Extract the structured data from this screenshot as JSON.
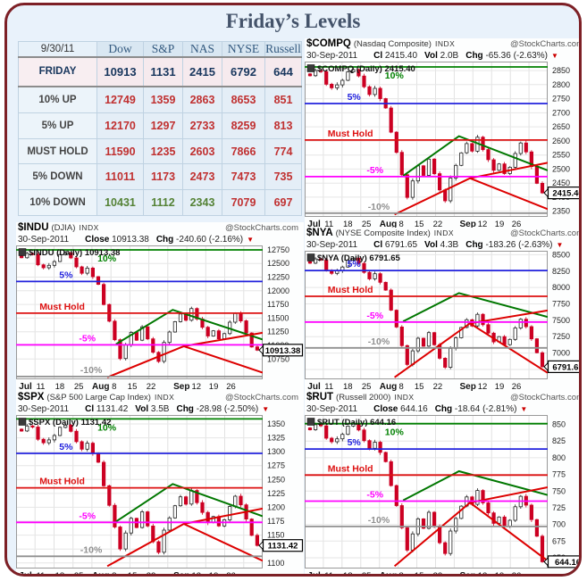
{
  "page": {
    "title": "Friday’s Levels",
    "border_color": "#7d2026",
    "background": "#e9f2fb"
  },
  "table": {
    "date_header": "9/30/11",
    "columns": [
      "Dow",
      "S&P",
      "NAS",
      "NYSE",
      "Russell"
    ],
    "rows": [
      {
        "label": "FRIDAY",
        "row_type": "friday",
        "values": [
          "10913",
          "1131",
          "2415",
          "6792",
          "644"
        ],
        "value_colors": [
          "navy",
          "navy",
          "navy",
          "navy",
          "navy"
        ]
      },
      {
        "label": "10% UP",
        "row_type": "normal",
        "values": [
          "12749",
          "1359",
          "2863",
          "8653",
          "851"
        ],
        "value_colors": [
          "red",
          "red",
          "red",
          "red",
          "red"
        ]
      },
      {
        "label": "5% UP",
        "row_type": "normal",
        "values": [
          "12170",
          "1297",
          "2733",
          "8259",
          "813"
        ],
        "value_colors": [
          "red",
          "red",
          "red",
          "red",
          "red"
        ]
      },
      {
        "label": "MUST HOLD",
        "row_type": "normal",
        "values": [
          "11590",
          "1235",
          "2603",
          "7866",
          "774"
        ],
        "value_colors": [
          "red",
          "red",
          "red",
          "red",
          "red"
        ]
      },
      {
        "label": "5% DOWN",
        "row_type": "normal",
        "values": [
          "11011",
          "1173",
          "2473",
          "7473",
          "735"
        ],
        "value_colors": [
          "red",
          "red",
          "red",
          "red",
          "red"
        ]
      },
      {
        "label": "10% DOWN",
        "row_type": "normal",
        "values": [
          "10431",
          "1112",
          "2343",
          "7079",
          "697"
        ],
        "value_colors": [
          "green",
          "green",
          "green",
          "red",
          "red"
        ]
      }
    ]
  },
  "x_axis": [
    {
      "t": "Jul",
      "b": true
    },
    {
      "t": "11"
    },
    {
      "t": "18"
    },
    {
      "t": "25"
    },
    {
      "t": "Aug",
      "b": true
    },
    {
      "t": "8"
    },
    {
      "t": "15"
    },
    {
      "t": "22"
    },
    {
      "t": "Sep",
      "b": true
    },
    {
      "t": "12"
    },
    {
      "t": "19"
    },
    {
      "t": "26"
    }
  ],
  "price_shape": [
    0.93,
    0.97,
    0.95,
    0.88,
    0.84,
    0.87,
    0.9,
    0.95,
    0.98,
    0.92,
    0.86,
    0.8,
    0.84,
    0.78,
    0.7,
    0.55,
    0.4,
    0.25,
    0.1,
    0.2,
    0.32,
    0.24,
    0.36,
    0.26,
    0.14,
    0.08,
    0.22,
    0.32,
    0.4,
    0.46,
    0.42,
    0.5,
    0.43,
    0.35,
    0.28,
    0.33,
    0.25,
    0.31,
    0.39,
    0.47,
    0.41,
    0.3,
    0.2,
    0.14
  ],
  "chart_data": [
    {
      "type": "candlestick",
      "symbol": "$COMPQ",
      "name": "(Nasdaq Composite)",
      "exch": "INDX",
      "source": "@StockCharts.com",
      "date": "30-Sep-2011",
      "quote": [
        {
          "k": "Cl",
          "v": "2415.40"
        },
        {
          "k": "Vol",
          "v": "2.0B"
        },
        {
          "k": "Chg",
          "v": "-65.36 (-2.63%)"
        }
      ],
      "plot_label": "$COMPQ (Daily) 2415.40",
      "close": 2415.4,
      "close_label": "2415.40",
      "y_min": 2330,
      "y_max": 2882,
      "ticks": [
        2850,
        2800,
        2750,
        2700,
        2650,
        2600,
        2550,
        2500,
        2450,
        2400,
        2350
      ],
      "levels": [
        {
          "label": "10%",
          "value": 2863,
          "color": "#008000"
        },
        {
          "label": "5%",
          "value": 2733,
          "color": "#2222dd"
        },
        {
          "label": "Must Hold",
          "value": 2603,
          "color": "#dd1111"
        },
        {
          "label": "-5%",
          "value": 2473,
          "color": "#ff00ff"
        },
        {
          "label": "-10%",
          "value": 2343,
          "color": "#909090"
        }
      ],
      "path_low": 2350,
      "path_high": 2868
    },
    {
      "type": "candlestick",
      "symbol": "$INDU",
      "name": "(DJIA)",
      "exch": "INDX",
      "source": "@StockCharts.com",
      "date": "30-Sep-2011",
      "quote": [
        {
          "k": "Close",
          "v": "10913.38"
        },
        {
          "k": "Chg",
          "v": "-240.60 (-2.16%)"
        }
      ],
      "plot_label": "$INDU (Daily) 10913.38",
      "close": 10913.38,
      "close_label": "10913.38",
      "y_min": 10380,
      "y_max": 12830,
      "ticks": [
        12750,
        12500,
        12250,
        12000,
        11750,
        11500,
        11250,
        11000,
        10750
      ],
      "levels": [
        {
          "label": "10%",
          "value": 12749,
          "color": "#008000"
        },
        {
          "label": "5%",
          "value": 12170,
          "color": "#2222dd"
        },
        {
          "label": "Must Hold",
          "value": 11590,
          "color": "#dd1111"
        },
        {
          "label": "-5%",
          "value": 11011,
          "color": "#ff00ff"
        },
        {
          "label": "-10%",
          "value": 10431,
          "color": "#909090"
        }
      ],
      "path_low": 10550,
      "path_high": 12760
    },
    {
      "type": "candlestick",
      "symbol": "$NYA",
      "name": "(NYSE Composite Index)",
      "exch": "INDX",
      "source": "@StockCharts.com",
      "date": "30-Sep-2011",
      "quote": [
        {
          "k": "Cl",
          "v": "6791.65"
        },
        {
          "k": "Vol",
          "v": "4.3B"
        },
        {
          "k": "Chg",
          "v": "-183.26 (-2.63%)"
        }
      ],
      "plot_label": "$NYA (Daily) 6791.65",
      "close": 6791.65,
      "close_label": "6791.65",
      "y_min": 6600,
      "y_max": 8560,
      "ticks": [
        8500,
        8250,
        8000,
        7750,
        7500,
        7250,
        7000,
        6750
      ],
      "levels": [
        {
          "label": "10%",
          "value": 8653,
          "color": "#008000"
        },
        {
          "label": "5%",
          "value": 8259,
          "color": "#2222dd"
        },
        {
          "label": "Must Hold",
          "value": 7866,
          "color": "#dd1111"
        },
        {
          "label": "-5%",
          "value": 7473,
          "color": "#ff00ff"
        },
        {
          "label": "-10%",
          "value": 7079,
          "color": "#909090"
        }
      ],
      "path_low": 6650,
      "path_high": 8500
    },
    {
      "type": "candlestick",
      "symbol": "$SPX",
      "name": "(S&P 500 Large Cap Index)",
      "exch": "INDX",
      "source": "@StockCharts.com",
      "date": "30-Sep-2011",
      "quote": [
        {
          "k": "Cl",
          "v": "1131.42"
        },
        {
          "k": "Vol",
          "v": "3.5B"
        },
        {
          "k": "Chg",
          "v": "-28.98 (-2.50%)"
        }
      ],
      "plot_label": "$SPX (Daily) 1131.42",
      "close": 1131.42,
      "close_label": "1131.42",
      "y_min": 1090,
      "y_max": 1366,
      "ticks": [
        1350,
        1325,
        1300,
        1275,
        1250,
        1225,
        1200,
        1175,
        1150,
        1125,
        1100
      ],
      "levels": [
        {
          "label": "10%",
          "value": 1359,
          "color": "#008000"
        },
        {
          "label": "5%",
          "value": 1297,
          "color": "#2222dd"
        },
        {
          "label": "Must Hold",
          "value": 1235,
          "color": "#dd1111"
        },
        {
          "label": "-5%",
          "value": 1173,
          "color": "#ff00ff"
        },
        {
          "label": "-10%",
          "value": 1112,
          "color": "#909090"
        }
      ],
      "path_low": 1101,
      "path_high": 1355
    },
    {
      "type": "candlestick",
      "symbol": "$RUT",
      "name": "(Russell 2000)",
      "exch": "INDX",
      "source": "@StockCharts.com",
      "date": "30-Sep-2011",
      "quote": [
        {
          "k": "Close",
          "v": "644.16"
        },
        {
          "k": "Chg",
          "v": "-18.64 (-2.81%)"
        }
      ],
      "plot_label": "$RUT (Daily) 644.16",
      "close": 644.16,
      "close_label": "644.16",
      "y_min": 634,
      "y_max": 864,
      "ticks": [
        850,
        825,
        800,
        775,
        750,
        725,
        700,
        675,
        650
      ],
      "levels": [
        {
          "label": "10%",
          "value": 851,
          "color": "#008000"
        },
        {
          "label": "5%",
          "value": 813,
          "color": "#2222dd"
        },
        {
          "label": "Must Hold",
          "value": 774,
          "color": "#dd1111"
        },
        {
          "label": "-5%",
          "value": 735,
          "color": "#ff00ff"
        },
        {
          "label": "-10%",
          "value": 697,
          "color": "#909090"
        }
      ],
      "path_low": 641,
      "path_high": 857
    }
  ]
}
